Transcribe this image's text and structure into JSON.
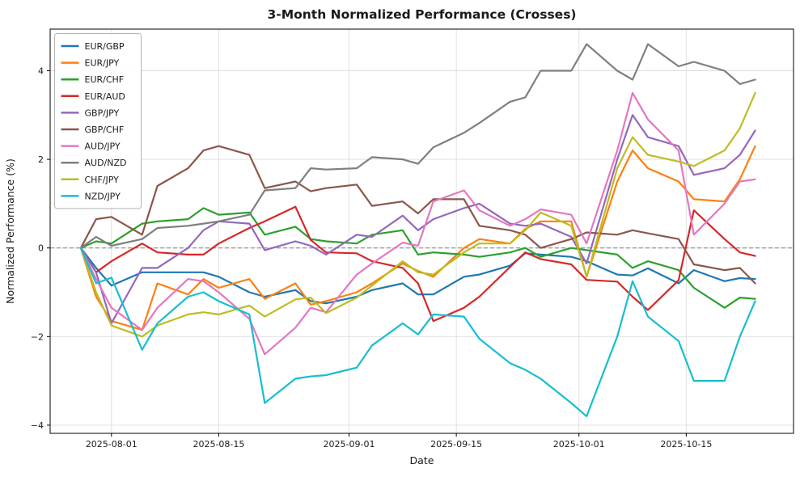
{
  "figure": {
    "title": "3-Month Normalized Performance (Crosses)"
  },
  "chart_data": {
    "type": "line",
    "title": "3-Month Normalized Performance (Crosses)",
    "xlabel": "Date",
    "ylabel": "Normalized Performance (%)",
    "grid": true,
    "zero_line": true,
    "legend_position": "upper-left",
    "x_range": [
      "2025-07-24",
      "2025-10-29"
    ],
    "ylim": [
      -4.2,
      4.95
    ],
    "y_ticks": [
      -4,
      -2,
      0,
      2,
      4
    ],
    "x_ticks": [
      "2025-08-01",
      "2025-08-15",
      "2025-09-01",
      "2025-09-15",
      "2025-10-01",
      "2025-10-15"
    ],
    "dates": [
      "2025-07-28",
      "2025-07-30",
      "2025-08-01",
      "2025-08-05",
      "2025-08-07",
      "2025-08-11",
      "2025-08-13",
      "2025-08-15",
      "2025-08-19",
      "2025-08-21",
      "2025-08-25",
      "2025-08-27",
      "2025-08-29",
      "2025-09-02",
      "2025-09-04",
      "2025-09-08",
      "2025-09-10",
      "2025-09-12",
      "2025-09-16",
      "2025-09-18",
      "2025-09-22",
      "2025-09-24",
      "2025-09-26",
      "2025-09-30",
      "2025-10-02",
      "2025-10-06",
      "2025-10-08",
      "2025-10-10",
      "2025-10-14",
      "2025-10-16",
      "2025-10-20",
      "2025-10-22",
      "2025-10-24"
    ],
    "series": [
      {
        "name": "EUR/GBP",
        "color": "#1f77b4",
        "values": [
          0,
          -0.45,
          -0.85,
          -0.55,
          -0.55,
          -0.55,
          -0.55,
          -0.65,
          -1.0,
          -1.1,
          -0.95,
          -1.2,
          -1.25,
          -1.1,
          -0.95,
          -0.8,
          -1.05,
          -1.05,
          -0.65,
          -0.6,
          -0.4,
          -0.12,
          -0.15,
          -0.2,
          -0.3,
          -0.6,
          -0.62,
          -0.46,
          -0.8,
          -0.5,
          -0.75,
          -0.68,
          -0.7
        ]
      },
      {
        "name": "EUR/JPY",
        "color": "#ff7f0e",
        "values": [
          0,
          -1.1,
          -1.65,
          -1.85,
          -0.8,
          -1.05,
          -0.7,
          -0.9,
          -0.7,
          -1.15,
          -0.8,
          -1.28,
          -1.2,
          -1.0,
          -0.8,
          -0.35,
          -0.52,
          -0.65,
          0.0,
          0.2,
          0.1,
          0.43,
          0.6,
          0.6,
          -0.65,
          1.5,
          2.2,
          1.8,
          1.5,
          1.1,
          1.05,
          1.55,
          2.3
        ]
      },
      {
        "name": "EUR/CHF",
        "color": "#2ca02c",
        "values": [
          0,
          0.15,
          0.1,
          0.55,
          0.6,
          0.65,
          0.9,
          0.75,
          0.8,
          0.3,
          0.48,
          0.2,
          0.15,
          0.1,
          0.3,
          0.4,
          -0.15,
          -0.1,
          -0.15,
          -0.2,
          -0.1,
          0.0,
          -0.2,
          0.0,
          -0.05,
          -0.15,
          -0.45,
          -0.3,
          -0.5,
          -0.9,
          -1.35,
          -1.12,
          -1.15
        ]
      },
      {
        "name": "EUR/AUD",
        "color": "#d62728",
        "values": [
          0,
          -0.55,
          -0.3,
          0.1,
          -0.1,
          -0.15,
          -0.15,
          0.1,
          0.45,
          0.6,
          0.93,
          0.18,
          -0.1,
          -0.12,
          -0.3,
          -0.45,
          -0.8,
          -1.65,
          -1.35,
          -1.1,
          -0.43,
          -0.1,
          -0.25,
          -0.37,
          -0.72,
          -0.76,
          -1.1,
          -1.4,
          -0.73,
          0.85,
          0.2,
          -0.1,
          -0.18
        ]
      },
      {
        "name": "GBP/JPY",
        "color": "#9467bd",
        "values": [
          0,
          -0.55,
          -1.7,
          -0.45,
          -0.45,
          0.0,
          0.4,
          0.6,
          0.55,
          -0.05,
          0.15,
          0.05,
          -0.15,
          0.3,
          0.25,
          0.73,
          0.4,
          0.65,
          0.9,
          1.0,
          0.55,
          0.5,
          0.55,
          0.25,
          -0.35,
          2.0,
          3.0,
          2.5,
          2.3,
          1.65,
          1.8,
          2.1,
          2.65
        ]
      },
      {
        "name": "GBP/CHF",
        "color": "#8c564b",
        "values": [
          0,
          0.65,
          0.7,
          0.3,
          1.4,
          1.8,
          2.2,
          2.3,
          2.1,
          1.35,
          1.5,
          1.28,
          1.35,
          1.43,
          0.95,
          1.05,
          0.78,
          1.1,
          1.1,
          0.5,
          0.4,
          0.3,
          0.0,
          0.2,
          0.35,
          0.3,
          0.4,
          0.33,
          0.2,
          -0.37,
          -0.5,
          -0.45,
          -0.8
        ]
      },
      {
        "name": "AUD/JPY",
        "color": "#e377c2",
        "values": [
          0,
          -0.7,
          -1.35,
          -1.85,
          -1.35,
          -0.7,
          -0.75,
          -1.0,
          -1.6,
          -2.4,
          -1.8,
          -1.35,
          -1.45,
          -0.6,
          -0.35,
          0.12,
          0.05,
          1.05,
          1.3,
          0.85,
          0.5,
          0.65,
          0.87,
          0.75,
          0.1,
          2.2,
          3.5,
          2.9,
          2.2,
          0.3,
          1.0,
          1.5,
          1.55
        ]
      },
      {
        "name": "AUD/NZD",
        "color": "#7f7f7f",
        "values": [
          0,
          0.25,
          0.05,
          0.2,
          0.45,
          0.5,
          0.55,
          0.6,
          0.75,
          1.3,
          1.35,
          1.8,
          1.77,
          1.8,
          2.05,
          2.0,
          1.9,
          2.27,
          2.6,
          2.82,
          3.3,
          3.4,
          4.0,
          4.0,
          4.6,
          4.0,
          3.8,
          4.6,
          4.1,
          4.2,
          4.0,
          3.7,
          3.8
        ]
      },
      {
        "name": "CHF/JPY",
        "color": "#bcbd22",
        "values": [
          0,
          -1.0,
          -1.75,
          -2.0,
          -1.75,
          -1.5,
          -1.45,
          -1.5,
          -1.3,
          -1.55,
          -1.16,
          -1.12,
          -1.47,
          -1.12,
          -0.85,
          -0.3,
          -0.55,
          -0.6,
          -0.1,
          0.1,
          0.1,
          0.4,
          0.8,
          0.5,
          -0.65,
          1.8,
          2.5,
          2.1,
          1.95,
          1.85,
          2.2,
          2.7,
          3.5
        ]
      },
      {
        "name": "NZD/JPY",
        "color": "#17becf",
        "values": [
          0,
          -0.8,
          -0.67,
          -2.3,
          -1.7,
          -1.1,
          -1.0,
          -1.2,
          -1.5,
          -3.5,
          -2.95,
          -2.9,
          -2.87,
          -2.7,
          -2.2,
          -1.7,
          -1.95,
          -1.5,
          -1.55,
          -2.05,
          -2.6,
          -2.75,
          -2.95,
          -3.5,
          -3.8,
          -2.0,
          -0.75,
          -1.55,
          -2.1,
          -3.0,
          -3.0,
          -2.0,
          -1.2
        ]
      }
    ],
    "style": {
      "grid_color": "#dddddd",
      "spine_color": "#000000",
      "text_color": "#1a1a1a",
      "zero_line_color": "#7f7f7f",
      "legend_border_color": "#b3b3b3",
      "line_width": 2.2
    }
  }
}
